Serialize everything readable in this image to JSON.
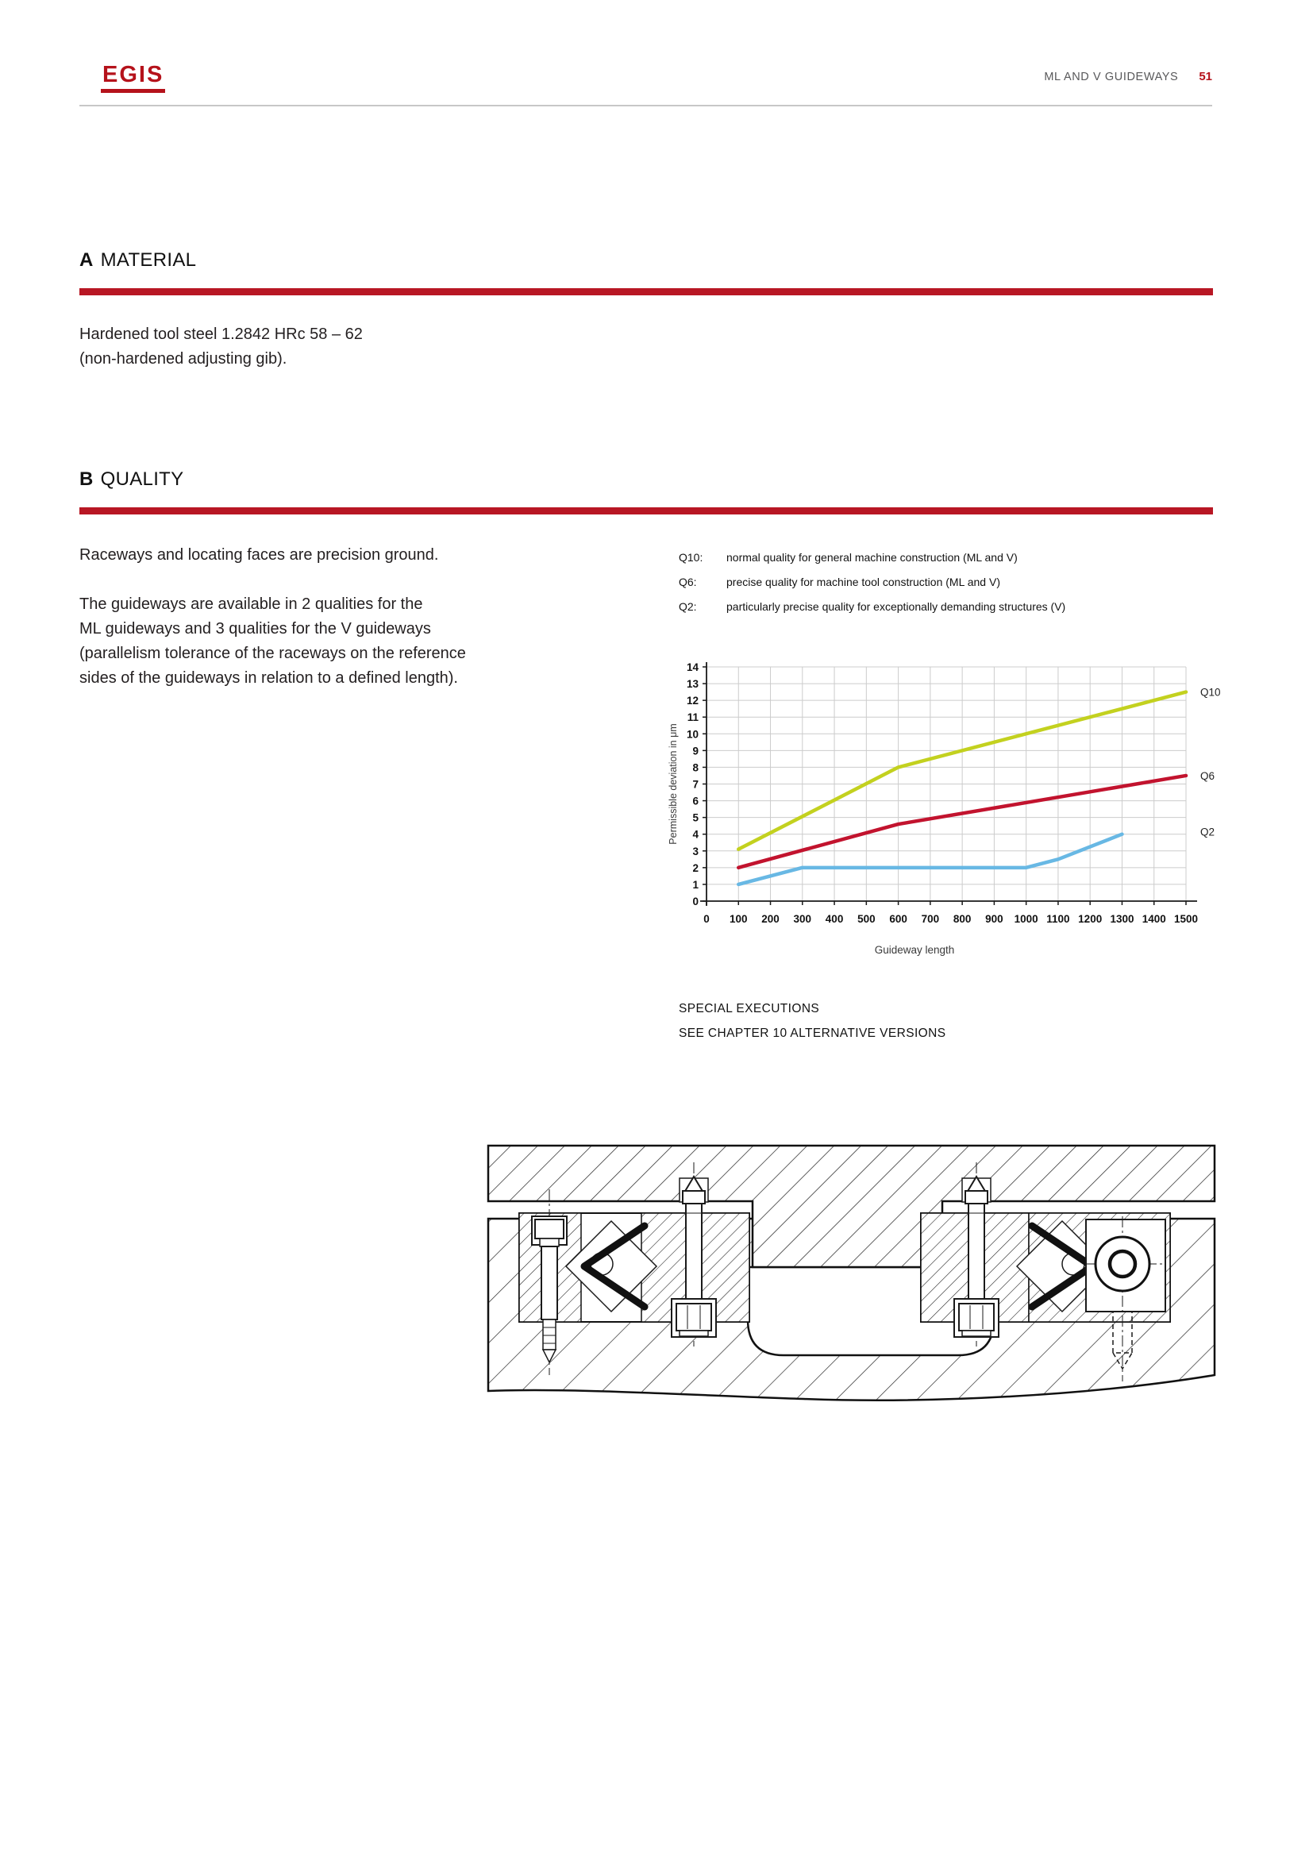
{
  "header": {
    "logo_text": "EGIS",
    "doc_title": "ML AND V GUIDEWAYS",
    "page_number": "51"
  },
  "section_a": {
    "letter": "A",
    "title": "MATERIAL",
    "body_lines": [
      "Hardened tool steel 1.2842 HRc 58 – 62",
      "(non-hardened adjusting gib)."
    ]
  },
  "section_b": {
    "letter": "B",
    "title": "QUALITY",
    "intro": "Raceways and locating faces are precision ground.",
    "body_lines": [
      "The guideways are available in 2 qualities for the",
      "ML guideways and 3 qualities for the V guideways",
      "(parallelism tolerance of the raceways on the reference",
      "sides of the guideways in relation to a defined length)."
    ],
    "legend": [
      {
        "label": "Q10:",
        "text": "normal quality for general machine construction (ML and V)"
      },
      {
        "label": "Q6:",
        "text": "precise quality for machine tool construction (ML and V)"
      },
      {
        "label": "Q2:",
        "text": "particularly precise quality for exceptionally demanding structures (V)"
      }
    ]
  },
  "chart_data": {
    "type": "line",
    "title": "",
    "xlabel": "Guideway length",
    "ylabel": "Permissible deviation in μm",
    "xlim": [
      0,
      1500
    ],
    "ylim": [
      0,
      14
    ],
    "xtick_step": 100,
    "ytick_step": 1,
    "grid": true,
    "legend_position": "right",
    "series": [
      {
        "name": "Q10",
        "color": "#c3d11f",
        "label_y": 12.5,
        "points": [
          [
            100,
            3.1
          ],
          [
            600,
            8.0
          ],
          [
            1500,
            12.5
          ]
        ]
      },
      {
        "name": "Q6",
        "color": "#c2132e",
        "label_y": 7.5,
        "points": [
          [
            100,
            2.0
          ],
          [
            600,
            4.6
          ],
          [
            1500,
            7.5
          ]
        ]
      },
      {
        "name": "Q2",
        "color": "#68b8e4",
        "label_y": 4.15,
        "points": [
          [
            100,
            1.0
          ],
          [
            300,
            2.0
          ],
          [
            1000,
            2.0
          ],
          [
            1100,
            2.5
          ],
          [
            1300,
            4.0
          ]
        ]
      }
    ]
  },
  "notes": {
    "line1": "SPECIAL EXECUTIONS",
    "line2": "SEE CHAPTER 10 ALTERNATIVE VERSIONS"
  },
  "colors": {
    "accent_red": "#b81724",
    "logo_red": "#b5121b",
    "header_gray": "#58585a",
    "text": "#231f20",
    "grid": "#cccccc",
    "axis": "#1a1a1a"
  }
}
